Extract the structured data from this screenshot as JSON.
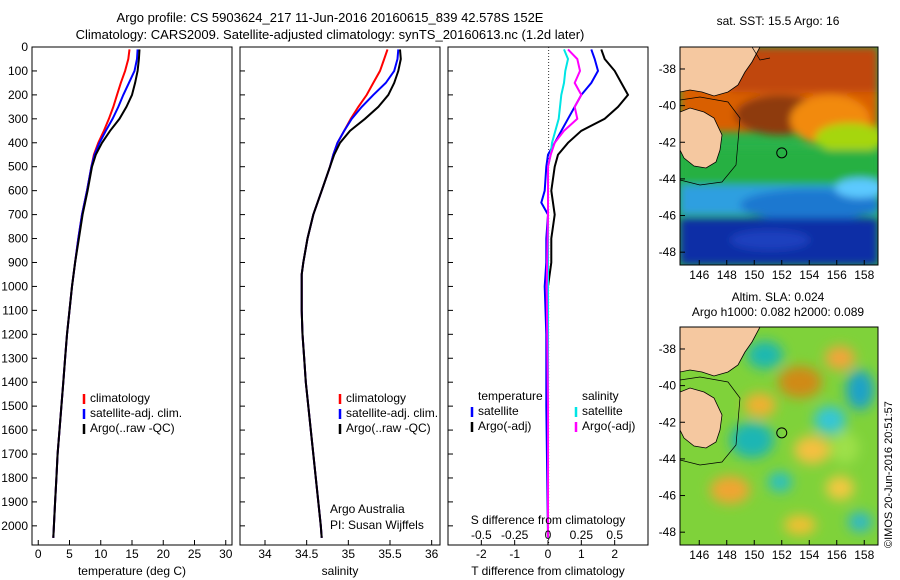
{
  "header": {
    "title_line1": "Argo profile: CS 5903624_217 11-Jun-2016 20160615_839 42.578S 152E",
    "title_line2": "Climatology: CARS2009. Satellite-adjusted climatology: synTS_20160613.nc (1.2d later)"
  },
  "colors": {
    "climatology": "#ff0000",
    "satellite": "#0000ff",
    "argo": "#000000",
    "satellite_salinity": "#00e5e5",
    "argo_salinity": "#ff00ff"
  },
  "chart_data": [
    {
      "type": "line",
      "panel": "temperature",
      "xlabel": "temperature (deg C)",
      "ylabel": "",
      "xlim": [
        -1,
        31
      ],
      "ylim": [
        2080,
        0
      ],
      "xticks": [
        "0",
        "5",
        "10",
        "15",
        "20",
        "25",
        "30"
      ],
      "yticks": [
        "0",
        "100",
        "200",
        "300",
        "400",
        "500",
        "600",
        "700",
        "800",
        "900",
        "1000",
        "1100",
        "1200",
        "1300",
        "1400",
        "1500",
        "1600",
        "1700",
        "1800",
        "1900",
        "2000"
      ],
      "legend": [
        "climatology",
        "satellite-adj. clim.",
        "Argo(..raw -QC)"
      ],
      "series": [
        {
          "name": "climatology",
          "depth": [
            10,
            50,
            100,
            150,
            200,
            250,
            300,
            350,
            400,
            450,
            500,
            600,
            700,
            800,
            900,
            1000,
            1100,
            1200,
            1300,
            1400,
            1500,
            1600,
            1700,
            1800,
            1900,
            2000,
            2050
          ],
          "values": [
            14.6,
            14.4,
            13.9,
            13.2,
            12.6,
            12.0,
            11.3,
            10.5,
            9.6,
            8.9,
            8.5,
            7.8,
            7.0,
            6.4,
            5.9,
            5.4,
            5.0,
            4.6,
            4.3,
            4.0,
            3.7,
            3.4,
            3.1,
            2.9,
            2.7,
            2.5,
            2.4
          ]
        },
        {
          "name": "satellite-adj. clim.",
          "depth": [
            10,
            50,
            100,
            150,
            200,
            250,
            300,
            350,
            400,
            450,
            500,
            600,
            700,
            800,
            900,
            1000,
            1100,
            1200,
            1300,
            1400,
            1500,
            1600,
            1700,
            1800,
            1900,
            2000,
            2050
          ],
          "values": [
            15.9,
            15.8,
            15.4,
            14.5,
            13.6,
            12.8,
            11.9,
            10.8,
            9.8,
            9.0,
            8.5,
            7.8,
            7.0,
            6.4,
            5.9,
            5.4,
            5.0,
            4.6,
            4.3,
            4.0,
            3.7,
            3.4,
            3.1,
            2.9,
            2.7,
            2.5,
            2.4
          ]
        },
        {
          "name": "Argo(..raw -QC)",
          "depth": [
            10,
            50,
            100,
            150,
            200,
            250,
            300,
            350,
            400,
            450,
            500,
            600,
            700,
            800,
            900,
            1000,
            1100,
            1200,
            1300,
            1400,
            1500,
            1600,
            1700,
            1800,
            1900,
            2000,
            2050
          ],
          "values": [
            16.2,
            16.1,
            15.9,
            15.5,
            15.0,
            14.1,
            13.0,
            11.5,
            10.2,
            9.2,
            8.6,
            7.9,
            7.1,
            6.5,
            5.9,
            5.4,
            5.0,
            4.6,
            4.3,
            4.0,
            3.7,
            3.4,
            3.1,
            2.9,
            2.7,
            2.5,
            2.4
          ]
        }
      ]
    },
    {
      "type": "line",
      "panel": "salinity",
      "xlabel": "salinity",
      "ylabel": "",
      "xlim": [
        33.7,
        36.1
      ],
      "ylim": [
        2080,
        0
      ],
      "xticks": [
        "34",
        "34.5",
        "35",
        "35.5",
        "36"
      ],
      "legend": [
        "climatology",
        "satellite-adj. clim.",
        "Argo(..raw -QC)"
      ],
      "annotation": [
        "Argo Australia",
        "PI: Susan Wijffels"
      ],
      "series": [
        {
          "name": "climatology",
          "depth": [
            10,
            50,
            100,
            150,
            200,
            250,
            300,
            350,
            400,
            450,
            500,
            600,
            700,
            800,
            900,
            950,
            1000,
            1100,
            1200,
            1300,
            1400,
            1500,
            1600,
            1700,
            1800,
            1900,
            2000,
            2050
          ],
          "values": [
            35.47,
            35.43,
            35.38,
            35.3,
            35.22,
            35.12,
            35.03,
            34.95,
            34.87,
            34.82,
            34.78,
            34.68,
            34.58,
            34.51,
            34.46,
            34.44,
            34.44,
            34.44,
            34.45,
            34.47,
            34.49,
            34.52,
            34.55,
            34.58,
            34.61,
            34.64,
            34.67,
            34.68
          ]
        },
        {
          "name": "satellite-adj. clim.",
          "depth": [
            10,
            50,
            100,
            150,
            200,
            250,
            300,
            350,
            400,
            450,
            500,
            600,
            700,
            800,
            900,
            950,
            1000,
            1100,
            1200,
            1300,
            1400,
            1500,
            1600,
            1700,
            1800,
            1900,
            2000,
            2050
          ],
          "values": [
            35.6,
            35.59,
            35.55,
            35.45,
            35.3,
            35.16,
            35.04,
            34.95,
            34.87,
            34.82,
            34.78,
            34.68,
            34.58,
            34.51,
            34.46,
            34.44,
            34.44,
            34.44,
            34.45,
            34.47,
            34.49,
            34.52,
            34.55,
            34.58,
            34.61,
            34.64,
            34.67,
            34.68
          ]
        },
        {
          "name": "Argo(..raw -QC)",
          "depth": [
            10,
            50,
            100,
            150,
            200,
            250,
            300,
            350,
            400,
            450,
            500,
            600,
            700,
            800,
            900,
            950,
            1000,
            1100,
            1200,
            1300,
            1400,
            1500,
            1600,
            1700,
            1800,
            1900,
            2000,
            2050
          ],
          "values": [
            35.62,
            35.63,
            35.6,
            35.55,
            35.48,
            35.36,
            35.2,
            35.02,
            34.9,
            34.83,
            34.78,
            34.68,
            34.58,
            34.51,
            34.46,
            34.44,
            34.44,
            34.44,
            34.45,
            34.47,
            34.49,
            34.52,
            34.55,
            34.58,
            34.61,
            34.64,
            34.67,
            34.68
          ]
        }
      ]
    },
    {
      "type": "line",
      "panel": "difference",
      "xlabel": "T difference from climatology",
      "xlabel_top": "S difference from climatology",
      "xlim": [
        -3,
        3
      ],
      "ylim": [
        2080,
        0
      ],
      "xticks_t": [
        "-2",
        "-1",
        "0",
        "1",
        "2"
      ],
      "xticks_s": [
        "-0.5",
        "-0.25",
        "0",
        "0.25",
        "0.5"
      ],
      "legend_temperature": [
        "temperature",
        "satellite",
        "Argo(-adj)"
      ],
      "legend_salinity": [
        "salinity",
        "satellite",
        "Argo(-adj)"
      ],
      "series": [
        {
          "name": "T satellite",
          "depth": [
            10,
            50,
            100,
            150,
            200,
            300,
            400,
            450,
            500,
            600,
            650,
            700,
            800,
            900,
            1000,
            1200,
            1500,
            2050
          ],
          "values": [
            1.3,
            1.4,
            1.5,
            1.3,
            1.0,
            0.6,
            0.2,
            0.0,
            -0.05,
            -0.1,
            -0.2,
            0.0,
            -0.05,
            -0.05,
            -0.1,
            -0.05,
            -0.05,
            0.0
          ]
        },
        {
          "name": "T Argo(-adj)",
          "depth": [
            10,
            50,
            100,
            150,
            200,
            250,
            300,
            350,
            400,
            450,
            500,
            600,
            700,
            800,
            900,
            1000,
            1100,
            1200,
            1500,
            1800,
            2050
          ],
          "values": [
            1.6,
            1.7,
            2.0,
            2.2,
            2.4,
            2.1,
            1.7,
            1.0,
            0.6,
            0.3,
            0.2,
            0.1,
            0.2,
            0.1,
            0.1,
            0.0,
            0.0,
            0.0,
            0.0,
            0.0,
            0.0
          ]
        },
        {
          "name": "S satellite",
          "depth": [
            10,
            50,
            100,
            150,
            200,
            300,
            400,
            450,
            500,
            700,
            1000,
            1500,
            2050
          ],
          "values": [
            0.12,
            0.15,
            0.13,
            0.12,
            0.1,
            0.08,
            0.03,
            0.02,
            0.0,
            0.0,
            0.0,
            0.0,
            0.0
          ]
        },
        {
          "name": "S Argo(-adj)",
          "depth": [
            10,
            50,
            100,
            150,
            200,
            250,
            300,
            350,
            400,
            450,
            500,
            700,
            1000,
            1500,
            2050
          ],
          "values": [
            0.15,
            0.22,
            0.24,
            0.2,
            0.25,
            0.2,
            0.22,
            0.12,
            0.05,
            0.02,
            0.0,
            0.0,
            -0.01,
            0.0,
            0.0
          ]
        }
      ]
    }
  ],
  "maps": {
    "sst": {
      "title": "sat. SST: 15.5 Argo: 16",
      "yticks": [
        "-38",
        "-40",
        "-42",
        "-44",
        "-46",
        "-48"
      ],
      "xticks": [
        "146",
        "148",
        "150",
        "152",
        "154",
        "156",
        "158"
      ],
      "float_lon": 152,
      "float_lat": -42.578
    },
    "sla": {
      "title_line1": "Altim. SLA: 0.024",
      "title_line2": "Argo h1000: 0.082 h2000: 0.089",
      "yticks": [
        "-38",
        "-40",
        "-42",
        "-44",
        "-46",
        "-48"
      ],
      "xticks": [
        "146",
        "148",
        "150",
        "152",
        "154",
        "156",
        "158"
      ],
      "float_lon": 152,
      "float_lat": -42.578
    }
  },
  "watermark": "©IMOS 20-Jun-2016 20:51:57"
}
